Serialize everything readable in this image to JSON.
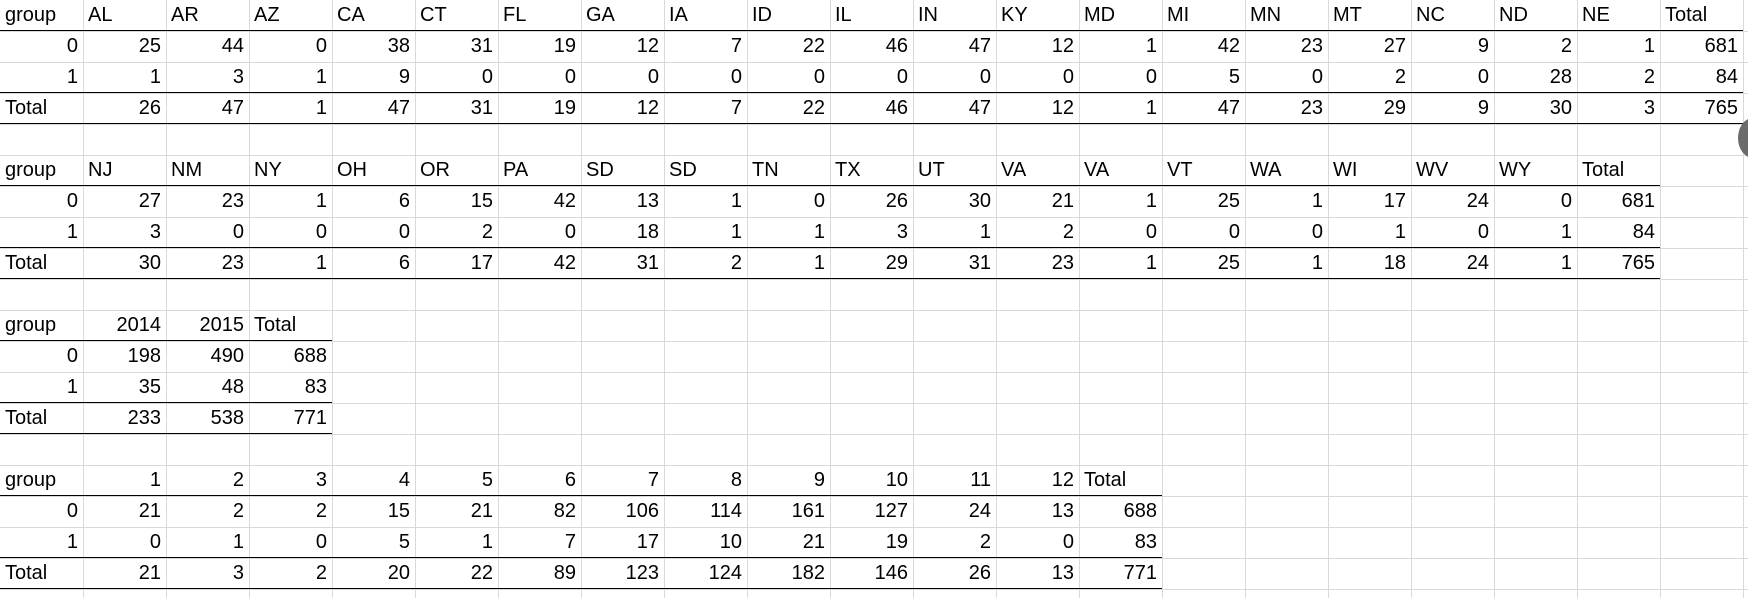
{
  "tables": [
    {
      "header": [
        "group",
        "AL",
        "AR",
        "AZ",
        "CA",
        "CT",
        "FL",
        "GA",
        "IA",
        "ID",
        "IL",
        "IN",
        "KY",
        "MD",
        "MI",
        "MN",
        "MT",
        "NC",
        "ND",
        "NE",
        "Total"
      ],
      "rows": [
        [
          "0",
          "25",
          "44",
          "0",
          "38",
          "31",
          "19",
          "12",
          "7",
          "22",
          "46",
          "47",
          "12",
          "1",
          "42",
          "23",
          "27",
          "9",
          "2",
          "1",
          "681"
        ],
        [
          "1",
          "1",
          "3",
          "1",
          "9",
          "0",
          "0",
          "0",
          "0",
          "0",
          "0",
          "0",
          "0",
          "0",
          "5",
          "0",
          "2",
          "0",
          "28",
          "2",
          "84"
        ],
        [
          "Total",
          "26",
          "47",
          "1",
          "47",
          "31",
          "19",
          "12",
          "7",
          "22",
          "46",
          "47",
          "12",
          "1",
          "47",
          "23",
          "29",
          "9",
          "30",
          "3",
          "765"
        ]
      ]
    },
    {
      "header": [
        "group",
        "NJ",
        "NM",
        "NY",
        "OH",
        "OR",
        "PA",
        "SD",
        "SD",
        "TN",
        "TX",
        "UT",
        "VA",
        "VA",
        "VT",
        "WA",
        "WI",
        "WV",
        "WY",
        "Total"
      ],
      "rows": [
        [
          "0",
          "27",
          "23",
          "1",
          "6",
          "15",
          "42",
          "13",
          "1",
          "0",
          "26",
          "30",
          "21",
          "1",
          "25",
          "1",
          "17",
          "24",
          "0",
          "681"
        ],
        [
          "1",
          "3",
          "0",
          "0",
          "0",
          "2",
          "0",
          "18",
          "1",
          "1",
          "3",
          "1",
          "2",
          "0",
          "0",
          "0",
          "1",
          "0",
          "1",
          "84"
        ],
        [
          "Total",
          "30",
          "23",
          "1",
          "6",
          "17",
          "42",
          "31",
          "2",
          "1",
          "29",
          "31",
          "23",
          "1",
          "25",
          "1",
          "18",
          "24",
          "1",
          "765"
        ]
      ]
    },
    {
      "header": [
        "group",
        "2014",
        "2015",
        "Total"
      ],
      "rows": [
        [
          "0",
          "198",
          "490",
          "688"
        ],
        [
          "1",
          "35",
          "48",
          "83"
        ],
        [
          "Total",
          "233",
          "538",
          "771"
        ]
      ]
    },
    {
      "header": [
        "group",
        "1",
        "2",
        "3",
        "4",
        "5",
        "6",
        "7",
        "8",
        "9",
        "10",
        "11",
        "12",
        "Total"
      ],
      "rows": [
        [
          "0",
          "21",
          "2",
          "2",
          "15",
          "21",
          "82",
          "106",
          "114",
          "161",
          "127",
          "24",
          "13",
          "688"
        ],
        [
          "1",
          "0",
          "1",
          "0",
          "5",
          "1",
          "7",
          "17",
          "10",
          "21",
          "19",
          "2",
          "0",
          "83"
        ],
        [
          "Total",
          "21",
          "3",
          "2",
          "20",
          "22",
          "89",
          "123",
          "124",
          "182",
          "146",
          "26",
          "13",
          "771"
        ]
      ]
    }
  ],
  "colors": {
    "gridline": "#d9d9d9",
    "rule": "#000000",
    "scroll_knob": "#6b6b6b"
  }
}
